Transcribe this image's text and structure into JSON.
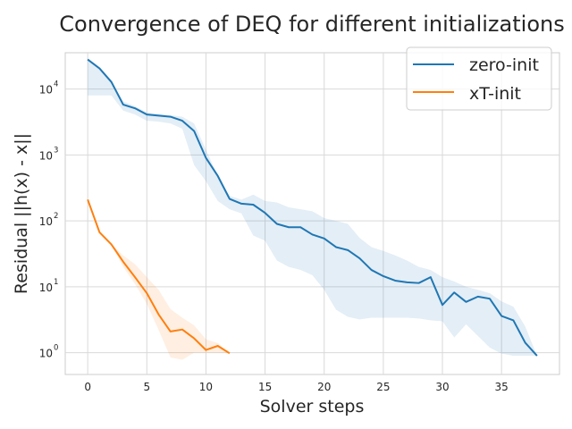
{
  "chart_data": {
    "type": "line",
    "title": "Convergence of DEQ for different initializations",
    "xlabel": "Solver steps",
    "ylabel": "Residual ||h(x) - x||",
    "xlim": [
      -1.9,
      39.9
    ],
    "ylim_log10": [
      -0.33,
      4.55
    ],
    "yscale": "log",
    "grid": true,
    "legend_position": "top-right",
    "x_ticks": [
      "0",
      "5",
      "10",
      "15",
      "20",
      "25",
      "30",
      "35"
    ],
    "y_ticks": [
      {
        "base": "10",
        "exp": "0"
      },
      {
        "base": "10",
        "exp": "1"
      },
      {
        "base": "10",
        "exp": "2"
      },
      {
        "base": "10",
        "exp": "3"
      },
      {
        "base": "10",
        "exp": "4"
      }
    ],
    "series": [
      {
        "name": "zero-init",
        "color": "#1f77b4",
        "band_color": "#1f77b4",
        "x": [
          0,
          1,
          2,
          3,
          4,
          5,
          6,
          7,
          8,
          9,
          10,
          11,
          12,
          13,
          14,
          15,
          16,
          17,
          18,
          19,
          20,
          21,
          22,
          23,
          24,
          25,
          26,
          27,
          28,
          29,
          30,
          31,
          32,
          33,
          34,
          35,
          36,
          37,
          38
        ],
        "y": [
          28000,
          20500,
          12800,
          5800,
          5100,
          4100,
          3950,
          3800,
          3300,
          2300,
          900,
          480,
          215,
          182,
          176,
          132,
          90,
          80,
          80,
          62,
          54,
          40,
          36,
          27,
          18,
          14.5,
          12.4,
          11.7,
          11.4,
          14,
          5.3,
          8.2,
          5.9,
          7.1,
          6.6,
          3.6,
          3.1,
          1.42,
          0.9
        ],
        "band_low": [
          8000,
          8000,
          8000,
          4700,
          4100,
          3300,
          3200,
          3000,
          2500,
          700,
          400,
          200,
          150,
          130,
          60,
          50,
          25,
          20,
          18,
          15,
          9,
          4.5,
          3.5,
          3.2,
          3.4,
          3.4,
          3.4,
          3.4,
          3.3,
          3.1,
          3.0,
          1.7,
          2.7,
          1.8,
          1.2,
          0.97,
          0.9,
          0.9,
          0.9
        ],
        "band_high": [
          28000,
          20500,
          12800,
          6500,
          5500,
          4400,
          4200,
          4000,
          3800,
          3000,
          1200,
          480,
          240,
          210,
          250,
          200,
          190,
          160,
          150,
          140,
          110,
          100,
          90,
          55,
          40,
          35,
          30,
          25,
          20,
          18,
          14,
          12,
          10,
          9,
          8,
          6,
          5,
          2.5,
          0.9
        ]
      },
      {
        "name": "xT-init",
        "color": "#ff7f0e",
        "band_color": "#ff7f0e",
        "x": [
          0,
          1,
          2,
          3,
          4,
          5,
          6,
          7,
          8,
          9,
          10,
          11,
          12
        ],
        "y": [
          210,
          67,
          44,
          24,
          14,
          8,
          3.8,
          2.1,
          2.25,
          1.65,
          1.1,
          1.27,
          0.98
        ],
        "band_low": [
          210,
          67,
          44,
          20,
          11,
          5.5,
          2.2,
          0.85,
          0.78,
          1.0,
          1.0,
          1.0,
          0.98
        ],
        "band_high": [
          210,
          67,
          44,
          30,
          22,
          14,
          9,
          4.6,
          3.4,
          2.6,
          1.6,
          1.4,
          0.98
        ]
      }
    ]
  }
}
